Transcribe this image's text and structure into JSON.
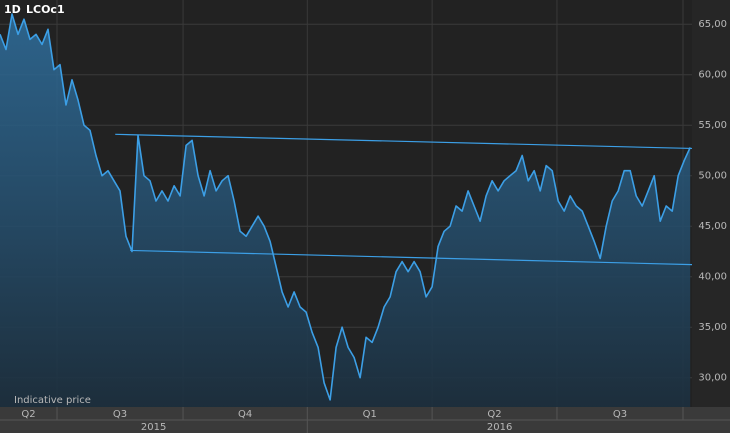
{
  "chart_data": {
    "type": "area-line",
    "interval": "1D",
    "symbol": "LCOc1",
    "note": "Indicative price",
    "color": "#3c9fe6",
    "grid": true,
    "xlim": [
      0,
      115.3
    ],
    "ylim": [
      27.1,
      67.4
    ],
    "yticks": [
      {
        "value": 30,
        "label": "30,00"
      },
      {
        "value": 35,
        "label": "35,00"
      },
      {
        "value": 40,
        "label": "40,00"
      },
      {
        "value": 45,
        "label": "45,00"
      },
      {
        "value": 50,
        "label": "50,00"
      },
      {
        "value": 55,
        "label": "55,00"
      },
      {
        "value": 60,
        "label": "60,00"
      },
      {
        "value": 65,
        "label": "65,00"
      }
    ],
    "period_boundaries": [
      9.5,
      30.5,
      51.2,
      72,
      92.8,
      113.8
    ],
    "quarters": [
      "Q2",
      "Q3",
      "Q4",
      "Q1",
      "Q2",
      "Q3"
    ],
    "years": [
      "2015",
      "2016"
    ],
    "values": [
      64,
      62.5,
      66,
      64,
      65.5,
      63.5,
      64,
      63,
      64.5,
      60.5,
      61,
      57,
      59.5,
      57.5,
      55,
      54.5,
      52,
      50,
      50.5,
      49.5,
      48.5,
      44,
      42.5,
      54,
      50,
      49.5,
      47.5,
      48.5,
      47.5,
      49,
      48,
      53,
      53.5,
      50,
      48,
      50.5,
      48.5,
      49.5,
      50,
      47.5,
      44.5,
      44,
      45,
      46,
      45,
      43.5,
      41,
      38.5,
      37,
      38.5,
      37,
      36.5,
      34.5,
      33,
      29.5,
      27.8,
      33,
      35,
      33,
      32,
      30,
      34,
      33.5,
      35,
      37,
      38,
      40.5,
      41.5,
      40.5,
      41.5,
      40.5,
      38,
      39,
      43,
      44.5,
      45,
      47,
      46.5,
      48.5,
      47,
      45.5,
      48,
      49.5,
      48.5,
      49.5,
      50,
      50.5,
      52,
      49.5,
      50.5,
      48.5,
      51,
      50.5,
      47.5,
      46.5,
      48,
      47,
      46.5,
      45,
      43.5,
      41.8,
      45,
      47.5,
      48.5,
      50.5,
      50.5,
      48,
      47,
      48.5,
      50,
      45.5,
      47,
      46.5,
      50,
      51.5,
      52.8
    ],
    "trend_lines": [
      {
        "x": [
          19.2,
          115.3
        ],
        "values": [
          54.1,
          52.7
        ]
      },
      {
        "x": [
          21.7,
          115.3
        ],
        "values": [
          42.6,
          41.2
        ]
      }
    ]
  }
}
